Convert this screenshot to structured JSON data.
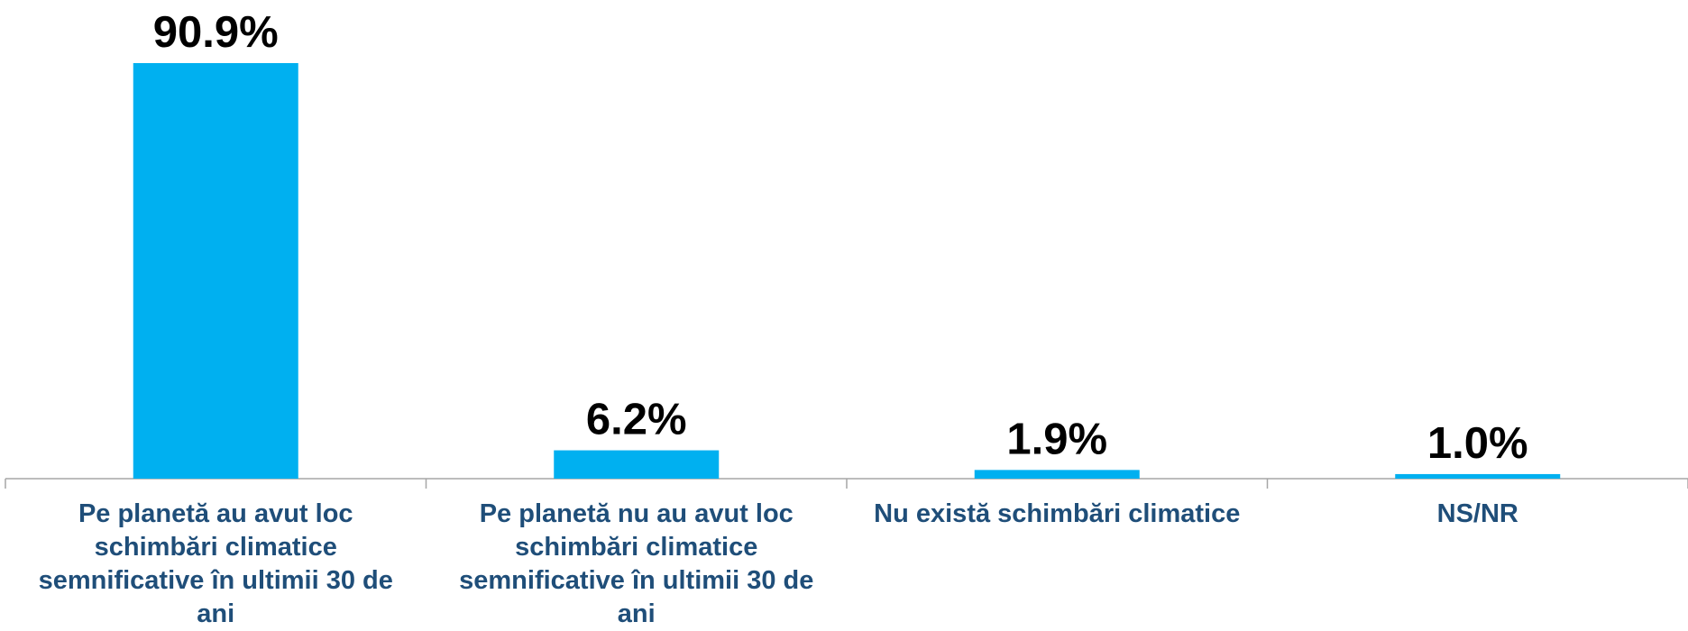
{
  "chart_data": {
    "type": "bar",
    "categories": [
      "Pe planetă au avut loc schimbări climatice semnificative în ultimii 30 de ani",
      "Pe planetă nu au avut loc schimbări climatice semnificative în ultimii 30 de ani",
      "Nu există schimbări climatice",
      "NS/NR"
    ],
    "values": [
      90.9,
      6.2,
      1.9,
      1.0
    ],
    "value_labels": [
      "90.9%",
      "6.2%",
      "1.9%",
      "1.0%"
    ],
    "color": "#00b0f0"
  }
}
